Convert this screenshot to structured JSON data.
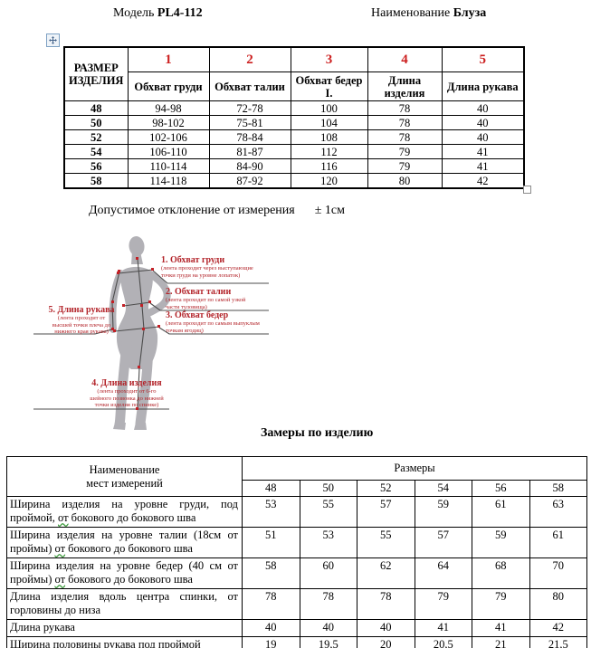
{
  "header": {
    "model_label": "Модель",
    "model_value": "PL4-112",
    "name_label": "Наименование",
    "name_value": "Блуза"
  },
  "size_table": {
    "corner_header": "РАЗМЕР ИЗДЕЛИЯ",
    "col_nums": [
      "1",
      "2",
      "3",
      "4",
      "5"
    ],
    "col_labels": [
      "Обхват груди",
      "Обхват талии",
      "Обхват бедер I.",
      "Длина изделия",
      "Длина рукава"
    ],
    "rows": [
      {
        "size": "48",
        "v": [
          "94-98",
          "72-78",
          "100",
          "78",
          "40"
        ]
      },
      {
        "size": "50",
        "v": [
          "98-102",
          "75-81",
          "104",
          "78",
          "40"
        ]
      },
      {
        "size": "52",
        "v": [
          "102-106",
          "78-84",
          "108",
          "78",
          "40"
        ]
      },
      {
        "size": "54",
        "v": [
          "106-110",
          "81-87",
          "112",
          "79",
          "41"
        ]
      },
      {
        "size": "56",
        "v": [
          "110-114",
          "84-90",
          "116",
          "79",
          "41"
        ]
      },
      {
        "size": "58",
        "v": [
          "114-118",
          "87-92",
          "120",
          "80",
          "42"
        ]
      }
    ]
  },
  "tolerance": {
    "text": "Допустимое отклонение от измерения",
    "value": "± 1см"
  },
  "figure": {
    "colors": {
      "silhouette": "#b2b1b6",
      "accent_red": "#c32026",
      "line": "#4c4c4c"
    },
    "l1": {
      "title": "1. Обхват груди",
      "note1": "(лента проходит через выступающие",
      "note2": "точки груди на уровне лопаток)"
    },
    "l2": {
      "title": "2. Обхват талии",
      "note1": "(лента проходит по самой узкой",
      "note2": "части туловища)"
    },
    "l3": {
      "title": "3. Обхват бедер",
      "note1": "(лента проходит по самым выпуклым",
      "note2": "точкам ягодиц)"
    },
    "l4": {
      "title": "4. Длина изделия",
      "note1": "(лента проходит от 6-го",
      "note2": "шейного позвонка до нижней",
      "note3": "точки изделия по спинке)"
    },
    "l5": {
      "title": "5. Длина рукава",
      "note1": "(лента проходит от",
      "note2": "высшей точки плеча до",
      "note3": "нижнего края рукава)"
    }
  },
  "measure_section": {
    "title": "Замеры по изделию",
    "table": {
      "name_header_line1": "Наименование",
      "name_header_line2": "мест измерений",
      "sizes_label": "Размеры",
      "sizes": [
        "48",
        "50",
        "52",
        "54",
        "56",
        "58"
      ],
      "rows": [
        {
          "label": "Ширина изделия  на уровне груди,  под проймой, от бокового до бокового шва",
          "values": [
            "53",
            "55",
            "57",
            "59",
            "61",
            "63"
          ]
        },
        {
          "label": "Ширина изделия на уровне талии (18см от проймы) от бокового до бокового шва",
          "values": [
            "51",
            "53",
            "55",
            "57",
            "59",
            "61"
          ]
        },
        {
          "label": "Ширина изделия  на уровне бедер (40 см от проймы) от бокового до бокового шва",
          "values": [
            "58",
            "60",
            "62",
            "64",
            "68",
            "70"
          ]
        },
        {
          "label": "Длина изделия  вдоль  центра спинки, от горловины  до низа",
          "values": [
            "78",
            "78",
            "78",
            "79",
            "79",
            "80"
          ]
        },
        {
          "label": "Длина  рукава",
          "values": [
            "40",
            "40",
            "40",
            "41",
            "41",
            "42"
          ]
        },
        {
          "label": "Ширина половины рукава под проймой",
          "values": [
            "19",
            "19,5",
            "20",
            "20,5",
            "21",
            "21,5"
          ]
        }
      ]
    }
  }
}
